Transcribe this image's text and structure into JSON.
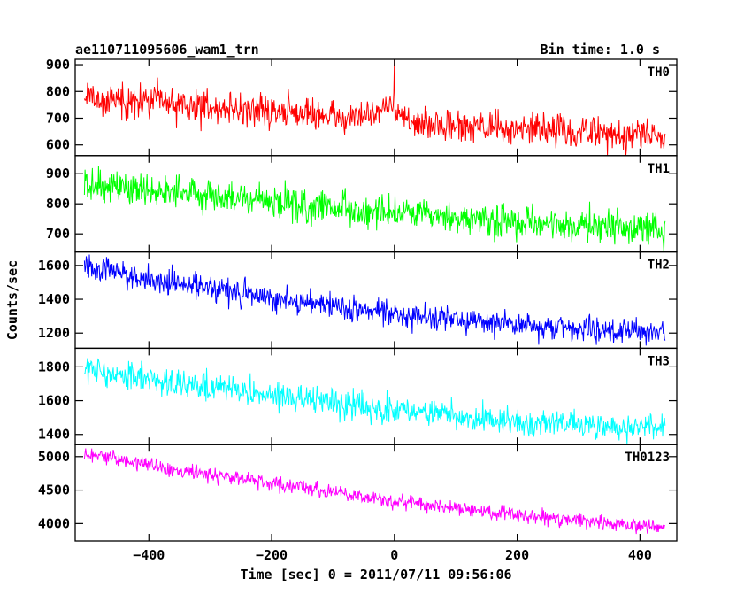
{
  "header": {
    "title": "ae110711095606_wam1_trn",
    "bin_time": "Bin time: 1.0 s"
  },
  "chart_data": {
    "type": "line",
    "title": "ae110711095606_wam1_trn",
    "subtitle": "Bin time: 1.0 s",
    "xlabel": "Time [sec] 0 = 2011/07/11 09:56:06",
    "ylabel": "Counts/sec",
    "xlim": [
      -520,
      460
    ],
    "xticks": [
      -400,
      -200,
      0,
      200,
      400
    ],
    "x_range": [
      -505,
      441
    ],
    "bin_time_s": 1.0,
    "grid": false,
    "panels": [
      {
        "name": "TH0",
        "color": "#ff0000",
        "ylim": [
          560,
          920
        ],
        "yticks": [
          600,
          700,
          800,
          900
        ],
        "trend": [
          {
            "x": -505,
            "y": 775
          },
          {
            "x": -400,
            "y": 760
          },
          {
            "x": -200,
            "y": 725
          },
          {
            "x": -50,
            "y": 700
          },
          {
            "x": 0,
            "y": 680
          },
          {
            "x": 200,
            "y": 660
          },
          {
            "x": 441,
            "y": 635
          }
        ],
        "noise_sd": 30,
        "features": [
          {
            "x": 0,
            "y": 920,
            "label": "peak"
          },
          {
            "x": -5,
            "y": 850
          },
          {
            "x": -15,
            "y": 760
          }
        ]
      },
      {
        "name": "TH1",
        "color": "#00ff00",
        "ylim": [
          640,
          960
        ],
        "yticks": [
          700,
          800,
          900
        ],
        "trend": [
          {
            "x": -505,
            "y": 870
          },
          {
            "x": -400,
            "y": 850
          },
          {
            "x": -200,
            "y": 805
          },
          {
            "x": 0,
            "y": 765
          },
          {
            "x": 200,
            "y": 735
          },
          {
            "x": 441,
            "y": 715
          }
        ],
        "noise_sd": 28,
        "features": []
      },
      {
        "name": "TH2",
        "color": "#0000ff",
        "ylim": [
          1110,
          1680
        ],
        "yticks": [
          1200,
          1400,
          1600
        ],
        "trend": [
          {
            "x": -505,
            "y": 1600
          },
          {
            "x": -400,
            "y": 1520
          },
          {
            "x": -200,
            "y": 1410
          },
          {
            "x": 0,
            "y": 1310
          },
          {
            "x": 200,
            "y": 1250
          },
          {
            "x": 441,
            "y": 1190
          }
        ],
        "noise_sd": 38,
        "features": []
      },
      {
        "name": "TH3",
        "color": "#00ffff",
        "ylim": [
          1340,
          1910
        ],
        "yticks": [
          1400,
          1600,
          1800
        ],
        "trend": [
          {
            "x": -505,
            "y": 1790
          },
          {
            "x": -400,
            "y": 1730
          },
          {
            "x": -200,
            "y": 1630
          },
          {
            "x": 0,
            "y": 1540
          },
          {
            "x": 200,
            "y": 1480
          },
          {
            "x": 441,
            "y": 1430
          }
        ],
        "noise_sd": 40,
        "features": []
      },
      {
        "name": "TH0123",
        "color": "#ff00ff",
        "ylim": [
          3740,
          5180
        ],
        "yticks": [
          4000,
          4500,
          5000
        ],
        "trend": [
          {
            "x": -505,
            "y": 5040
          },
          {
            "x": -400,
            "y": 4880
          },
          {
            "x": -200,
            "y": 4600
          },
          {
            "x": 0,
            "y": 4330
          },
          {
            "x": 200,
            "y": 4130
          },
          {
            "x": 441,
            "y": 3940
          }
        ],
        "noise_sd": 55,
        "features": []
      }
    ]
  }
}
